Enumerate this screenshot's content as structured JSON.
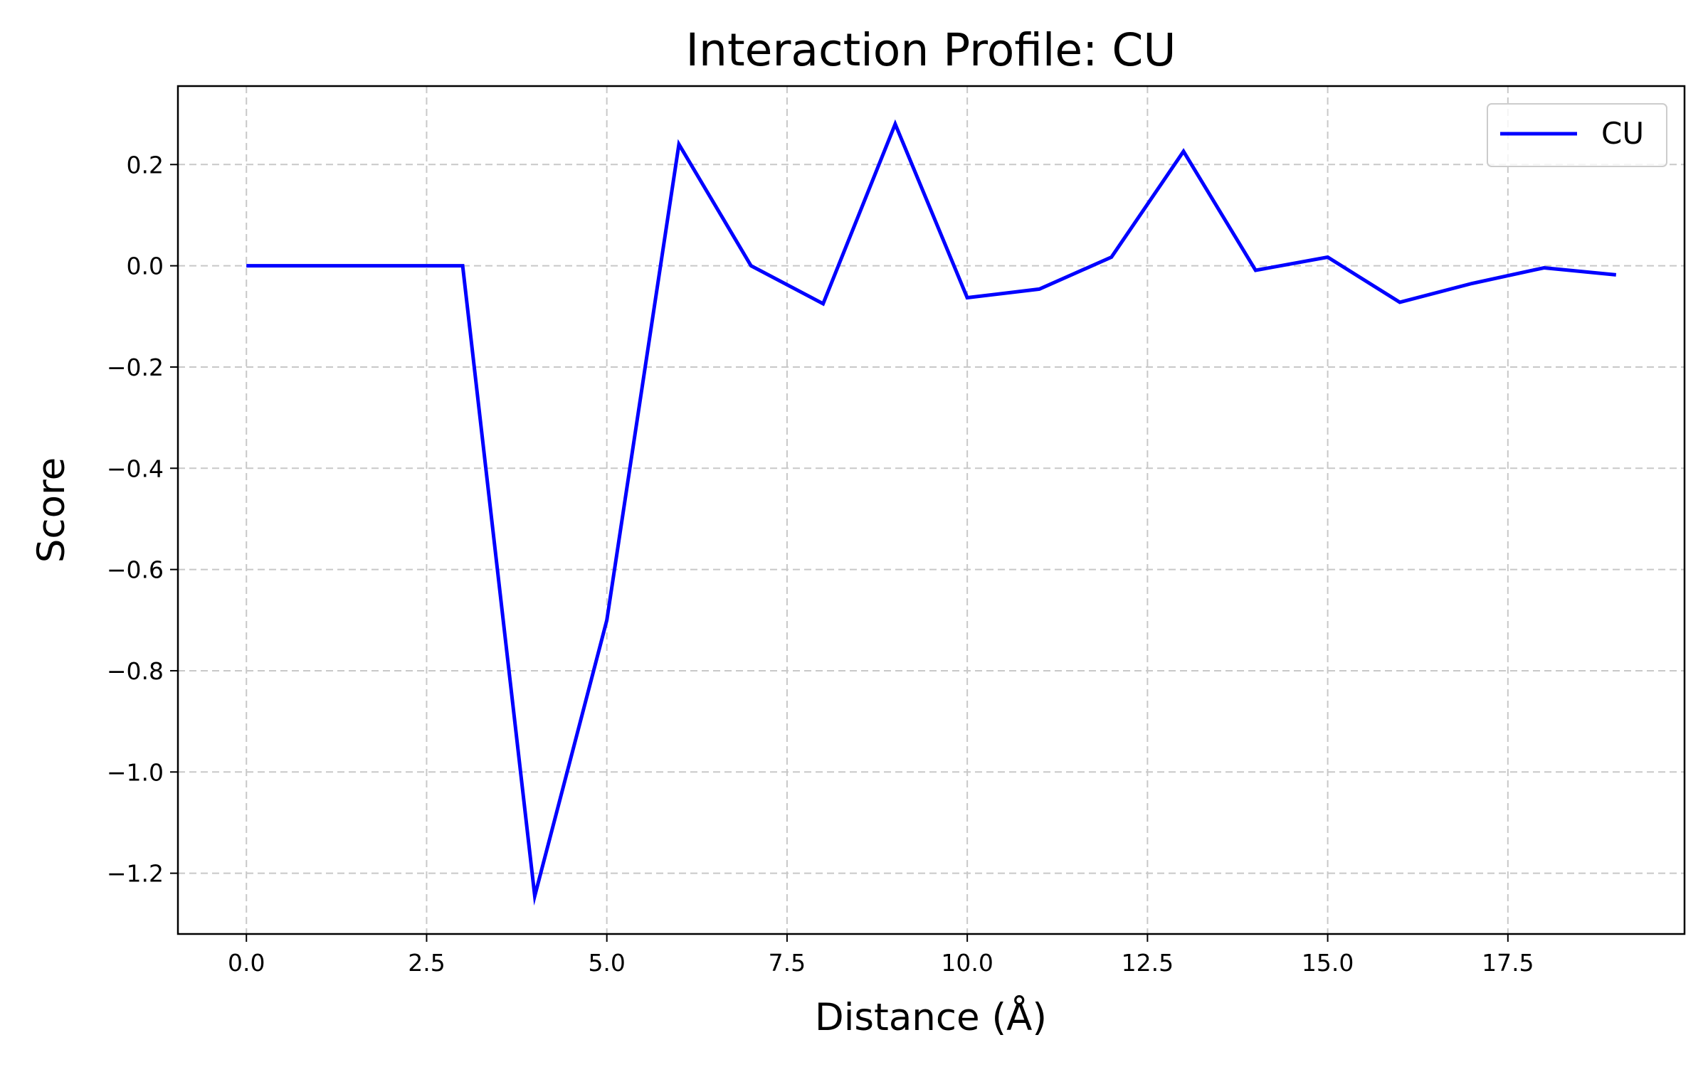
{
  "chart_data": {
    "type": "line",
    "title": "Interaction Profile: CU",
    "xlabel": "Distance (Å)",
    "ylabel": "Score",
    "xlim": [
      -0.95,
      19.95
    ],
    "ylim": [
      -1.32,
      0.355
    ],
    "x_ticks": [
      0.0,
      2.5,
      5.0,
      7.5,
      10.0,
      12.5,
      15.0,
      17.5
    ],
    "x_tick_labels": [
      "0.0",
      "2.5",
      "5.0",
      "7.5",
      "10.0",
      "12.5",
      "15.0",
      "17.5"
    ],
    "y_ticks": [
      0.2,
      0.0,
      -0.2,
      -0.4,
      -0.6,
      -0.8,
      -1.0,
      -1.2
    ],
    "y_tick_labels": [
      "0.2",
      "0.0",
      "−0.2",
      "−0.4",
      "−0.6",
      "−0.8",
      "−1.0",
      "−1.2"
    ],
    "grid": true,
    "legend_position": "top-right",
    "series": [
      {
        "name": "CU",
        "color": "#0000ff",
        "x": [
          0,
          1,
          2,
          3,
          4,
          5,
          6,
          7,
          8,
          9,
          10,
          11,
          12,
          13,
          14,
          15,
          16,
          17,
          18,
          19
        ],
        "y": [
          0.0,
          0.0,
          0.0,
          0.0,
          -1.245,
          -0.7,
          0.24,
          0.0,
          -0.075,
          0.28,
          -0.063,
          -0.046,
          0.017,
          0.226,
          -0.009,
          0.017,
          -0.072,
          -0.035,
          -0.004,
          -0.018
        ]
      }
    ]
  }
}
